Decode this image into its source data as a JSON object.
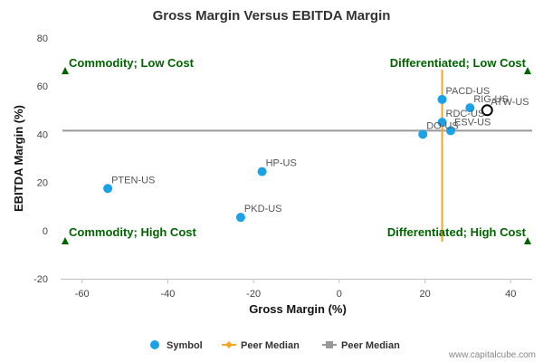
{
  "chart_data": {
    "type": "scatter",
    "title": "Gross Margin Versus EBITDA Margin",
    "xlabel": "Gross Margin (%)",
    "ylabel": "EBITDA Margin (%)",
    "xlim": [
      -65,
      45
    ],
    "ylim": [
      -20,
      80
    ],
    "xticks": [
      -60,
      -40,
      -20,
      0,
      20,
      40
    ],
    "yticks": [
      -20,
      0,
      20,
      40,
      60,
      80
    ],
    "grid": false,
    "legend_position": "bottom",
    "points": [
      {
        "label": "PTEN-US",
        "x": -54,
        "y": 17.5
      },
      {
        "label": "HP-US",
        "x": -18,
        "y": 24.5
      },
      {
        "label": "PKD-US",
        "x": -23,
        "y": 5.5
      },
      {
        "label": "PACD-US",
        "x": 24,
        "y": 54.5
      },
      {
        "label": "RIG-US",
        "x": 30.5,
        "y": 51
      },
      {
        "label": "ATW-US",
        "x": 34.5,
        "y": 50,
        "highlighted": true
      },
      {
        "label": "RDC-US",
        "x": 24,
        "y": 45
      },
      {
        "label": "ESV-US",
        "x": 26,
        "y": 41.5
      },
      {
        "label": "DO-US",
        "x": 19.5,
        "y": 40
      }
    ],
    "peer_median_x": 24,
    "peer_median_y": 41.5,
    "quadrant_labels": {
      "top_left": "Commodity; Low Cost",
      "top_right": "Differentiated; Low Cost",
      "bottom_left": "Commodity; High Cost",
      "bottom_right": "Differentiated; High Cost"
    },
    "legend": [
      {
        "name": "Symbol",
        "marker": "circle",
        "color": "#1ba1e8"
      },
      {
        "name": "Peer Median",
        "marker": "diamond-line",
        "color": "#f5a623"
      },
      {
        "name": "Peer Median",
        "marker": "square-line",
        "color": "#999999"
      }
    ],
    "colors": {
      "points": "#1ba1e8",
      "median_x": "#f5a623",
      "median_y": "#999999",
      "quadrant": "#006400"
    }
  },
  "footer": {
    "credit": "www.capitalcube.com"
  }
}
